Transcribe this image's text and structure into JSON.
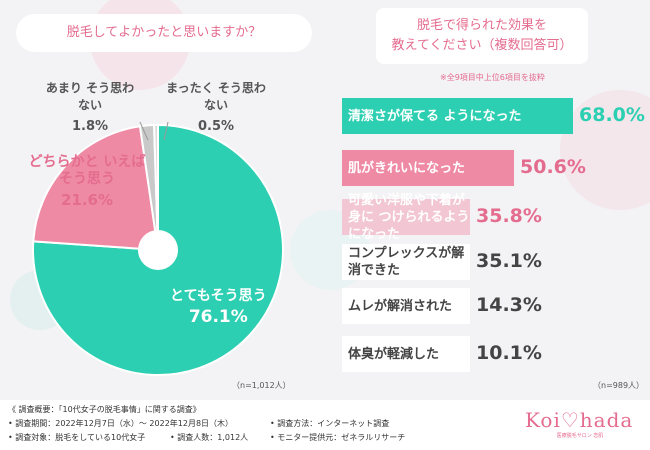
{
  "left": {
    "question": "脱毛してよかったと思いますか？",
    "sample": "（n=1,012人）",
    "colors": [
      "#2ccfb1",
      "#ef8aa4",
      "#c9c9c9",
      "#dcdcdc"
    ]
  },
  "right": {
    "question_line1": "脱毛で得られた効果を",
    "question_line2": "教えてください（複数回答可）",
    "note": "※全9項目中上位6項目を抜粋",
    "sample": "（n=989人）"
  },
  "chart_data": [
    {
      "type": "pie",
      "title": "脱毛してよかったと思いますか？",
      "slices": [
        {
          "label": "とてもそう思う",
          "value": 76.1,
          "display": "76.1%"
        },
        {
          "label": "どちらかと いえばそう思う",
          "value": 21.6,
          "display": "21.6%"
        },
        {
          "label": "あまり そう思わない",
          "value": 1.8,
          "display": "1.8%"
        },
        {
          "label": "まったく そう思わない",
          "value": 0.5,
          "display": "0.5%"
        }
      ]
    },
    {
      "type": "bar",
      "title": "脱毛で得られた効果を教えてください（複数回答可）",
      "categories": [
        "清潔さが保てる ようになった",
        "肌がきれいになった",
        "可愛い洋服や下着が身に つけられるようになった",
        "コンプレックスが解消できた",
        "ムレが解消された",
        "体臭が軽減した"
      ],
      "values": [
        68.0,
        50.6,
        35.8,
        35.1,
        14.3,
        10.1
      ],
      "value_labels": [
        "68.0%",
        "50.6%",
        "35.8%",
        "35.1%",
        "14.3%",
        "10.1%"
      ],
      "xlim": [
        0,
        100
      ]
    }
  ],
  "bars_style": [
    {
      "bg": "#2ccfb1",
      "fg": "#ffffff",
      "pct": "#2ccfb1"
    },
    {
      "bg": "#ef8aa4",
      "fg": "#ffffff",
      "pct": "#e46c8f"
    },
    {
      "bg": "#f2c7d3",
      "fg": "#ffffff",
      "pct": "#e46c8f"
    },
    {
      "bg": "#ffffff",
      "fg": "#444444",
      "pct": "#444444"
    },
    {
      "bg": "#ffffff",
      "fg": "#444444",
      "pct": "#444444"
    },
    {
      "bg": "#ffffff",
      "fg": "#444444",
      "pct": "#444444"
    }
  ],
  "footer": {
    "line1": "《 調査概要：「10代女子の脱毛事情」に関する調査》",
    "period": "• 調査期間：2022年12月7日（水）～ 2022年12月8日（木）",
    "method": "• 調査方法：インターネット調査",
    "target": "• 調査対象：脱毛をしている10代女子",
    "count": "• 調査人数：1,012人",
    "provider": "• モニター提供元：ゼネラルリサーチ"
  },
  "logo": {
    "text": "Koi♡hada",
    "sub": "医療脱毛サロン 恋肌"
  }
}
